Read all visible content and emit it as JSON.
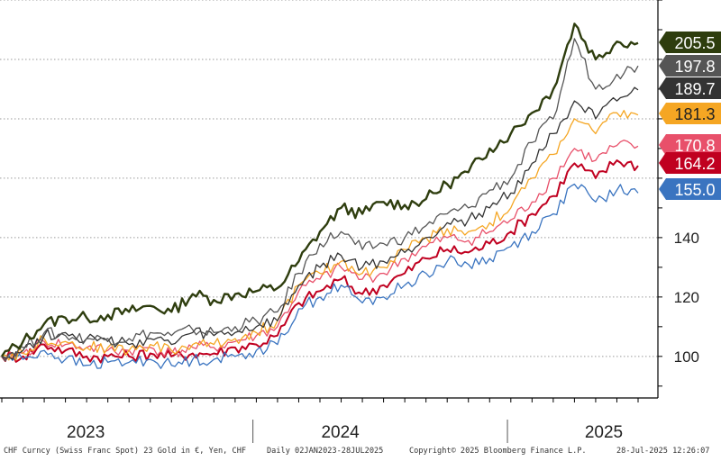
{
  "chart_data": {
    "type": "line",
    "title": "",
    "xlabel": "",
    "ylabel": "",
    "x_tick_labels": [
      "2023",
      "2024",
      "2025"
    ],
    "y_ticks": [
      100,
      120,
      140
    ],
    "ylim": [
      86,
      220
    ],
    "grid": "horizontal dotted",
    "legend": "right-edge value labels",
    "x": [
      "2023-01",
      "2023-02",
      "2023-03",
      "2023-04",
      "2023-05",
      "2023-06",
      "2023-07",
      "2023-08",
      "2023-09",
      "2023-10",
      "2023-11",
      "2023-12",
      "2024-01",
      "2024-02",
      "2024-03",
      "2024-04",
      "2024-05",
      "2024-06",
      "2024-07",
      "2024-08",
      "2024-09",
      "2024-10",
      "2024-11",
      "2024-12",
      "2025-01",
      "2025-02",
      "2025-03",
      "2025-04",
      "2025-05",
      "2025-06",
      "2025-07"
    ],
    "series": [
      {
        "color": "#2e3d0e",
        "end_label": "205.5",
        "values": [
          100,
          105,
          111,
          113,
          113,
          114,
          115,
          117,
          115,
          121,
          119,
          121,
          122,
          123,
          132,
          142,
          150,
          148,
          152,
          151,
          153,
          158,
          162,
          170,
          175,
          182,
          190,
          212,
          200,
          206,
          205.5
        ]
      },
      {
        "color": "#555555",
        "end_label": "197.8",
        "values": [
          100,
          103,
          108,
          107,
          106,
          106,
          106,
          108,
          107,
          109,
          108,
          110,
          112,
          115,
          128,
          138,
          142,
          136,
          138,
          140,
          144,
          148,
          150,
          156,
          160,
          172,
          180,
          207,
          190,
          195,
          197.8
        ]
      },
      {
        "color": "#333333",
        "end_label": "189.7",
        "values": [
          100,
          102,
          107,
          108,
          106,
          105,
          104,
          106,
          104,
          108,
          107,
          108,
          110,
          112,
          124,
          130,
          134,
          130,
          132,
          135,
          140,
          145,
          146,
          150,
          155,
          165,
          175,
          186,
          180,
          186,
          189.7
        ]
      },
      {
        "color": "#f5a623",
        "end_label": "181.3",
        "values": [
          100,
          101,
          106,
          105,
          103,
          103,
          102,
          104,
          102,
          104,
          104,
          106,
          108,
          112,
          124,
          128,
          132,
          128,
          130,
          136,
          140,
          143,
          142,
          145,
          150,
          160,
          168,
          180,
          175,
          182,
          181.3
        ]
      },
      {
        "color": "#e8506a",
        "end_label": "170.8",
        "values": [
          100,
          101,
          105,
          104,
          103,
          102,
          102,
          103,
          101,
          103,
          103,
          105,
          107,
          110,
          122,
          126,
          130,
          126,
          128,
          133,
          137,
          140,
          139,
          142,
          146,
          152,
          160,
          170,
          166,
          171,
          170.8
        ]
      },
      {
        "color": "#c00020",
        "end_label": "164.2",
        "values": [
          100,
          100,
          104,
          102,
          100,
          100,
          100,
          101,
          100,
          101,
          101,
          103,
          104,
          107,
          118,
          122,
          126,
          121,
          124,
          128,
          133,
          136,
          135,
          138,
          142,
          148,
          154,
          165,
          160,
          166,
          164.2
        ]
      },
      {
        "color": "#3a74c0",
        "end_label": "155.0",
        "values": [
          100,
          99,
          102,
          99,
          97,
          98,
          98,
          99,
          97,
          99,
          99,
          100,
          102,
          104,
          116,
          120,
          124,
          118,
          120,
          124,
          128,
          132,
          131,
          133,
          137,
          142,
          148,
          158,
          152,
          156,
          155.0
        ]
      }
    ]
  },
  "footer": {
    "source": "CHF Curncy (Swiss Franc Spot) 23 Gold in €, Yen, CHF",
    "period": "Daily 02JAN2023-28JUL2025",
    "copyright": "Copyright© 2025 Bloomberg Finance L.P.",
    "timestamp": "28-Jul-2025 12:26:07"
  }
}
